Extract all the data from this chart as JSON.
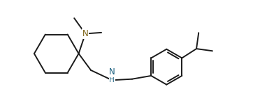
{
  "bg_color": "#ffffff",
  "line_color": "#1a1a1a",
  "line_width": 1.4,
  "N_color": "#7a6010",
  "NH_color": "#1a6080",
  "fig_width": 3.62,
  "fig_height": 1.51,
  "dpi": 100,
  "xlim": [
    0,
    10.5
  ],
  "ylim": [
    -0.5,
    4.2
  ]
}
